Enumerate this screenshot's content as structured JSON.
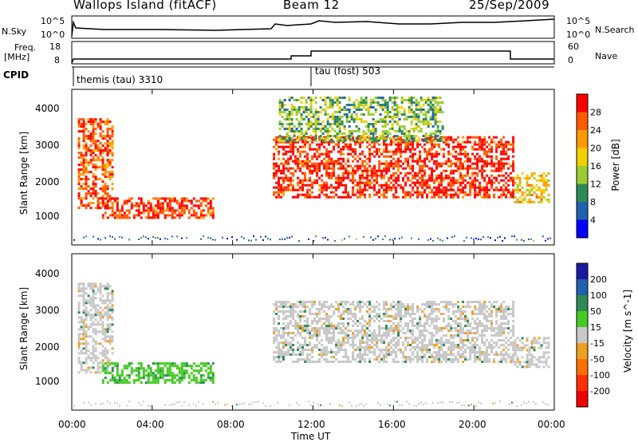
{
  "header": {
    "station": "Wallops Island (fitACF)",
    "beam": "Beam 12",
    "date": "25/Sep/2009"
  },
  "noise_panel": {
    "left_label": "N.Sky",
    "right_label": "N.Search",
    "left_ticks": [
      "10^5",
      "10^0"
    ],
    "right_ticks": [
      "10^5",
      "10^0"
    ]
  },
  "freq_panel": {
    "left_label_1": "Freq.",
    "left_label_2": "[MHz]",
    "right_label": "Nave",
    "left_ticks": [
      "18",
      "8"
    ],
    "right_ticks": [
      "60",
      "0"
    ]
  },
  "cpid_panel": {
    "label": "CPID",
    "mode1": "themis (tau) 3310",
    "mode2": "tau (fost) 503"
  },
  "time_axis": {
    "label": "Time UT",
    "ticks": [
      "00:00",
      "04:00",
      "08:00",
      "12:00",
      "16:00",
      "20:00",
      "00:00"
    ]
  },
  "chart_data": [
    {
      "type": "heatmap",
      "title": "Power",
      "ylabel": "Slant Range [km]",
      "colorbar_label": "Power [dB]",
      "colorbar_ticks": [
        "28",
        "24",
        "20",
        "16",
        "12",
        "8",
        "4"
      ],
      "colorbar_colors": [
        "#ff0000",
        "#ff5a00",
        "#ff9a00",
        "#f0d000",
        "#9acd32",
        "#2e8b57",
        "#2060b0",
        "#0000ff"
      ],
      "ylim": [
        180,
        4500
      ],
      "ytick_labels": [
        "1000",
        "2000",
        "3000",
        "4000"
      ],
      "xlim_hours": [
        0,
        24
      ],
      "echo_regions": [
        {
          "t0": 0.3,
          "t1": 2.0,
          "r0": 1200,
          "r1": 3700,
          "peak_db": 26
        },
        {
          "t0": 1.5,
          "t1": 7.0,
          "r0": 950,
          "r1": 1500,
          "peak_db": 28
        },
        {
          "t0": 10.0,
          "t1": 22.0,
          "r0": 1500,
          "r1": 3200,
          "peak_db": 29
        },
        {
          "t0": 10.3,
          "t1": 18.5,
          "r0": 3100,
          "r1": 4300,
          "peak_db": 14
        },
        {
          "t0": 22.0,
          "t1": 23.7,
          "r0": 1400,
          "r1": 2200,
          "peak_db": 20
        }
      ]
    },
    {
      "type": "heatmap",
      "title": "Velocity",
      "ylabel": "Slant Range [km]",
      "colorbar_label": "Velocity [m s^-1]",
      "colorbar_ticks": [
        "200",
        "100",
        "50",
        "15",
        "-15",
        "-50",
        "-100",
        "-200"
      ],
      "colorbar_colors": [
        "#1a1aa0",
        "#2060b0",
        "#2e8b57",
        "#44cc22",
        "#c8c8c8",
        "#f0a020",
        "#ff7000",
        "#ff3000",
        "#ee0000"
      ],
      "ylim": [
        180,
        4500
      ],
      "ytick_labels": [
        "1000",
        "2000",
        "3000",
        "4000"
      ],
      "xlim_hours": [
        0,
        24
      ],
      "echo_regions": [
        {
          "t0": 0.3,
          "t1": 2.0,
          "r0": 1200,
          "r1": 3700,
          "velocity": 0
        },
        {
          "t0": 1.5,
          "t1": 7.0,
          "r0": 950,
          "r1": 1500,
          "velocity": 40
        },
        {
          "t0": 10.0,
          "t1": 22.0,
          "r0": 1500,
          "r1": 3200,
          "velocity": 0
        },
        {
          "t0": 22.0,
          "t1": 23.7,
          "r0": 1400,
          "r1": 2200,
          "velocity": 0
        }
      ]
    }
  ]
}
